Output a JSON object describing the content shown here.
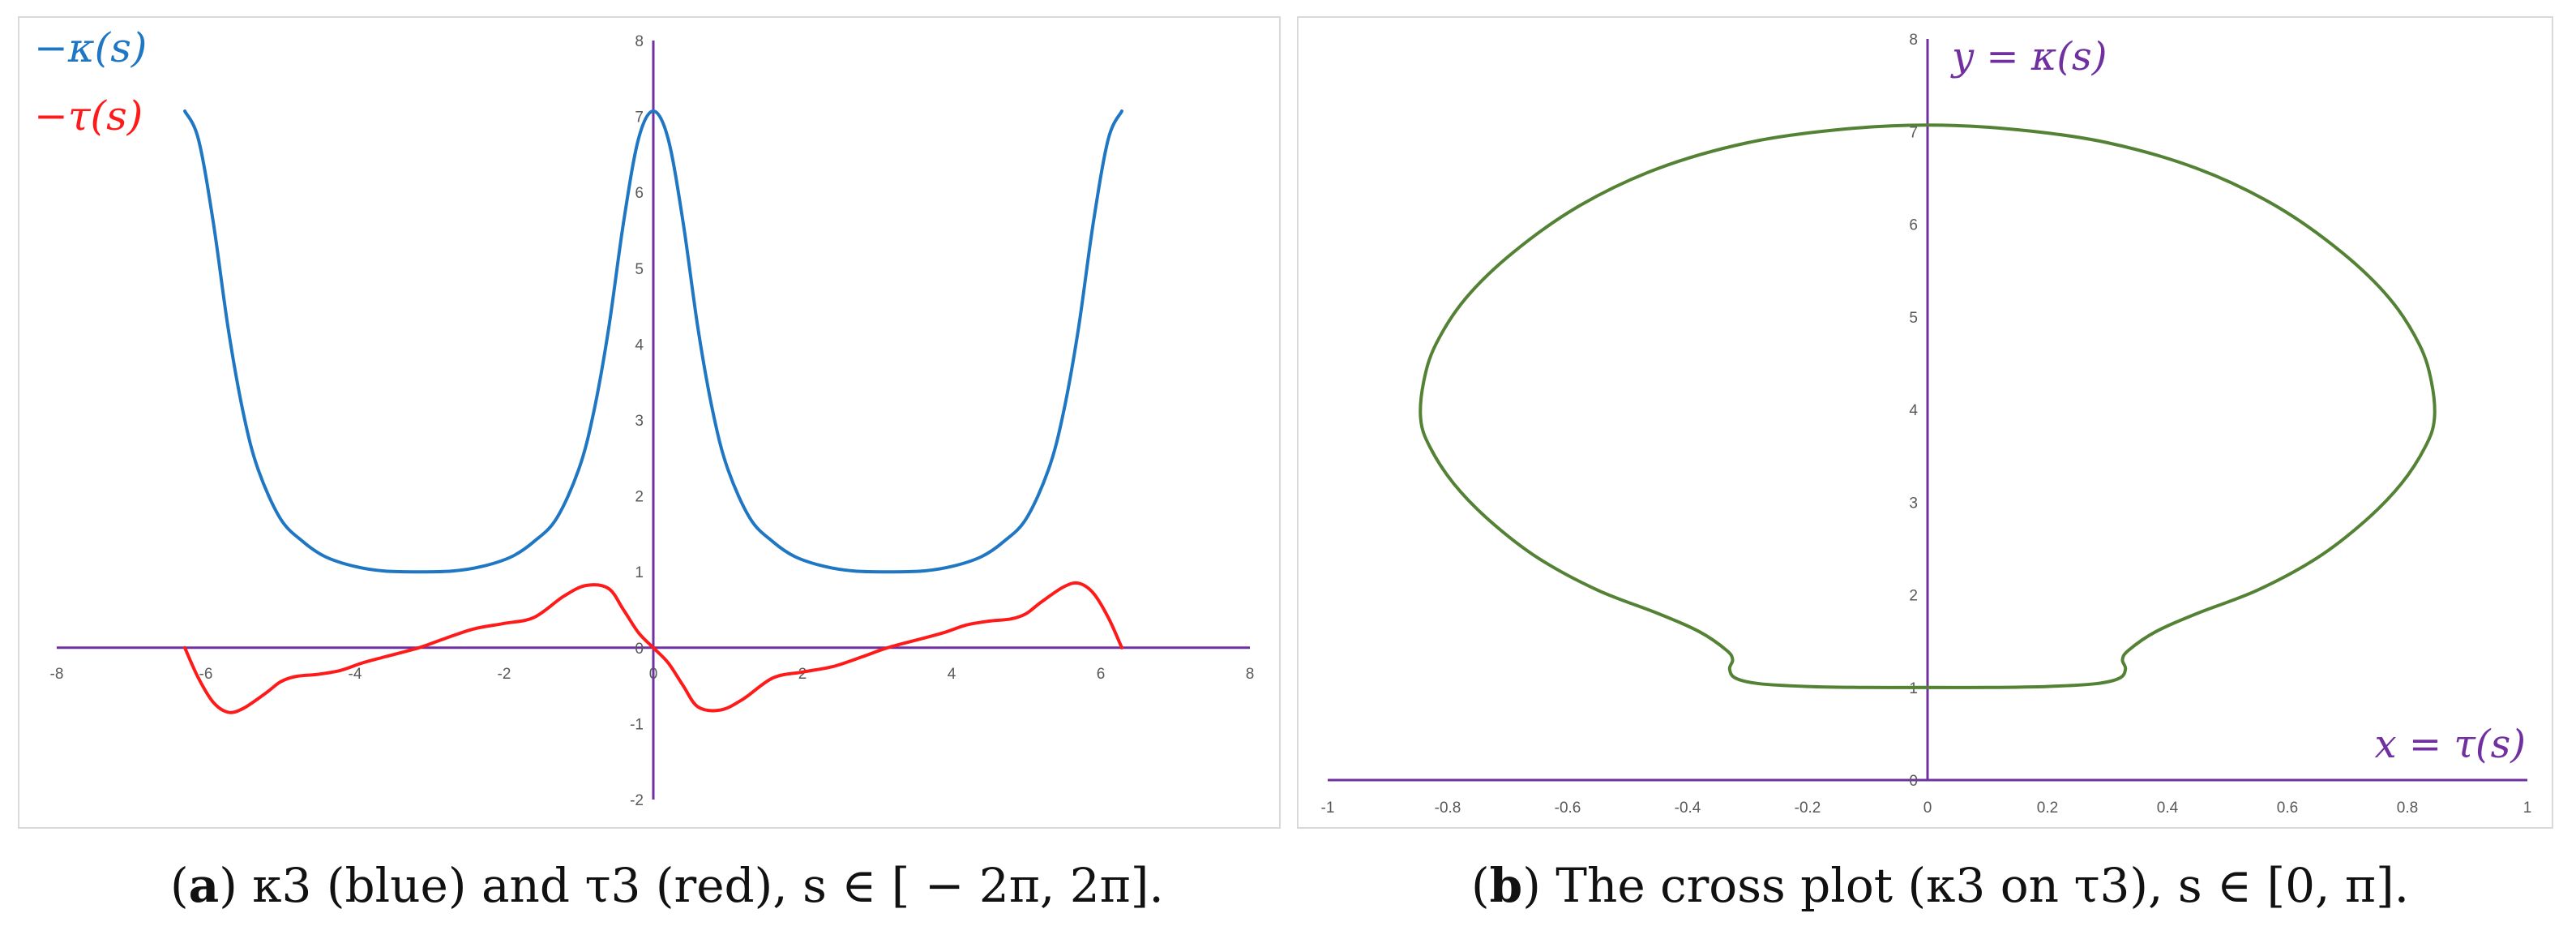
{
  "chart_data": [
    {
      "type": "line",
      "legend": {
        "placement": "top-left",
        "items": [
          {
            "label": "−κ(s)",
            "color": "#1f77c4"
          },
          {
            "label": "−τ(s)",
            "color": "#ff1a1a"
          }
        ]
      },
      "xlim": [
        -8,
        8
      ],
      "ylim": [
        -2,
        8
      ],
      "x_ticks": [
        "-8",
        "-6",
        "-4",
        "-2",
        "0",
        "2",
        "4",
        "6",
        "8"
      ],
      "y_ticks": [
        "-2",
        "-1",
        "0",
        "1",
        "2",
        "3",
        "4",
        "5",
        "6",
        "7",
        "8"
      ],
      "grid": false,
      "axis_color": "#7030a0",
      "series": [
        {
          "name": "−κ(s)",
          "color": "#1f77c4",
          "x": [
            -6.283,
            -6.1,
            -5.9,
            -5.7,
            -5.5,
            -5.3,
            -5.0,
            -4.7,
            -4.4,
            -4.0,
            -3.6,
            -3.142,
            -2.7,
            -2.3,
            -1.9,
            -1.6,
            -1.3,
            -1.0,
            -0.8,
            -0.6,
            -0.4,
            -0.2,
            0,
            0.2,
            0.4,
            0.6,
            0.8,
            1.0,
            1.3,
            1.6,
            1.9,
            2.3,
            2.7,
            3.142,
            3.6,
            4.0,
            4.4,
            4.7,
            5.0,
            5.3,
            5.5,
            5.7,
            5.9,
            6.1,
            6.283
          ],
          "y": [
            7.07,
            6.7,
            5.6,
            4.2,
            3.1,
            2.35,
            1.7,
            1.4,
            1.2,
            1.07,
            1.01,
            1.0,
            1.01,
            1.07,
            1.2,
            1.4,
            1.7,
            2.35,
            3.1,
            4.2,
            5.6,
            6.7,
            7.07,
            6.7,
            5.6,
            4.2,
            3.1,
            2.35,
            1.7,
            1.4,
            1.2,
            1.07,
            1.01,
            1.0,
            1.01,
            1.07,
            1.2,
            1.4,
            1.7,
            2.35,
            3.1,
            4.2,
            5.6,
            6.7,
            7.07
          ]
        },
        {
          "name": "−τ(s)",
          "color": "#ff1a1a",
          "x": [
            -6.283,
            -6.1,
            -5.9,
            -5.7,
            -5.5,
            -5.2,
            -5.0,
            -4.8,
            -4.5,
            -4.2,
            -3.9,
            -3.6,
            -3.142,
            -2.8,
            -2.4,
            -2.0,
            -1.6,
            -1.2,
            -0.9,
            -0.6,
            -0.4,
            -0.2,
            0,
            0.2,
            0.4,
            0.6,
            0.9,
            1.2,
            1.6,
            2.0,
            2.4,
            2.8,
            3.142,
            3.6,
            3.9,
            4.2,
            4.5,
            4.8,
            5.0,
            5.2,
            5.5,
            5.7,
            5.9,
            6.1,
            6.283
          ],
          "y": [
            0,
            -0.4,
            -0.72,
            -0.85,
            -0.8,
            -0.6,
            -0.45,
            -0.38,
            -0.35,
            -0.3,
            -0.2,
            -0.12,
            0,
            0.12,
            0.25,
            0.32,
            0.4,
            0.68,
            0.82,
            0.78,
            0.5,
            0.2,
            0,
            -0.2,
            -0.5,
            -0.78,
            -0.82,
            -0.68,
            -0.4,
            -0.32,
            -0.25,
            -0.12,
            0,
            0.12,
            0.2,
            0.3,
            0.35,
            0.38,
            0.45,
            0.6,
            0.8,
            0.85,
            0.72,
            0.4,
            0
          ]
        }
      ]
    },
    {
      "type": "line",
      "xlim": [
        -1,
        1
      ],
      "ylim": [
        0,
        8
      ],
      "x_ticks": [
        "-1",
        "-0.8",
        "-0.6",
        "-0.4",
        "-0.2",
        "0",
        "0.2",
        "0.4",
        "0.6",
        "0.8",
        "1"
      ],
      "y_ticks": [
        "0",
        "1",
        "2",
        "3",
        "4",
        "5",
        "6",
        "7",
        "8"
      ],
      "grid": false,
      "axis_color": "#7030a0",
      "xlabel": "x = τ(s)",
      "ylabel": "y = κ(s)",
      "series": [
        {
          "color": "#548235",
          "x": [
            0,
            0.1,
            0.2,
            0.28,
            0.32,
            0.33,
            0.325,
            0.335,
            0.38,
            0.45,
            0.55,
            0.65,
            0.73,
            0.79,
            0.83,
            0.845,
            0.84,
            0.82,
            0.77,
            0.69,
            0.58,
            0.45,
            0.3,
            0.15,
            0,
            -0.15,
            -0.3,
            -0.45,
            -0.58,
            -0.69,
            -0.77,
            -0.82,
            -0.84,
            -0.845,
            -0.83,
            -0.79,
            -0.73,
            -0.65,
            -0.55,
            -0.45,
            -0.38,
            -0.335,
            -0.325,
            -0.33,
            -0.32,
            -0.28,
            -0.2,
            -0.1,
            0
          ],
          "y": [
            1.0,
            1.0,
            1.01,
            1.04,
            1.1,
            1.2,
            1.3,
            1.4,
            1.6,
            1.8,
            2.05,
            2.4,
            2.8,
            3.2,
            3.6,
            3.9,
            4.3,
            4.7,
            5.2,
            5.7,
            6.2,
            6.6,
            6.88,
            7.02,
            7.07,
            7.02,
            6.88,
            6.6,
            6.2,
            5.7,
            5.2,
            4.7,
            4.3,
            3.9,
            3.6,
            3.2,
            2.8,
            2.4,
            2.05,
            1.8,
            1.6,
            1.4,
            1.3,
            1.2,
            1.1,
            1.04,
            1.01,
            1.0,
            1.0
          ]
        }
      ]
    }
  ],
  "captions": {
    "a": {
      "letter": "a",
      "text": " κ3 (blue) and τ3 (red), s ∈ [ − 2π, 2π]."
    },
    "b": {
      "letter": "b",
      "text": " The cross plot (κ3 on τ3), s ∈ [0, π]."
    }
  }
}
